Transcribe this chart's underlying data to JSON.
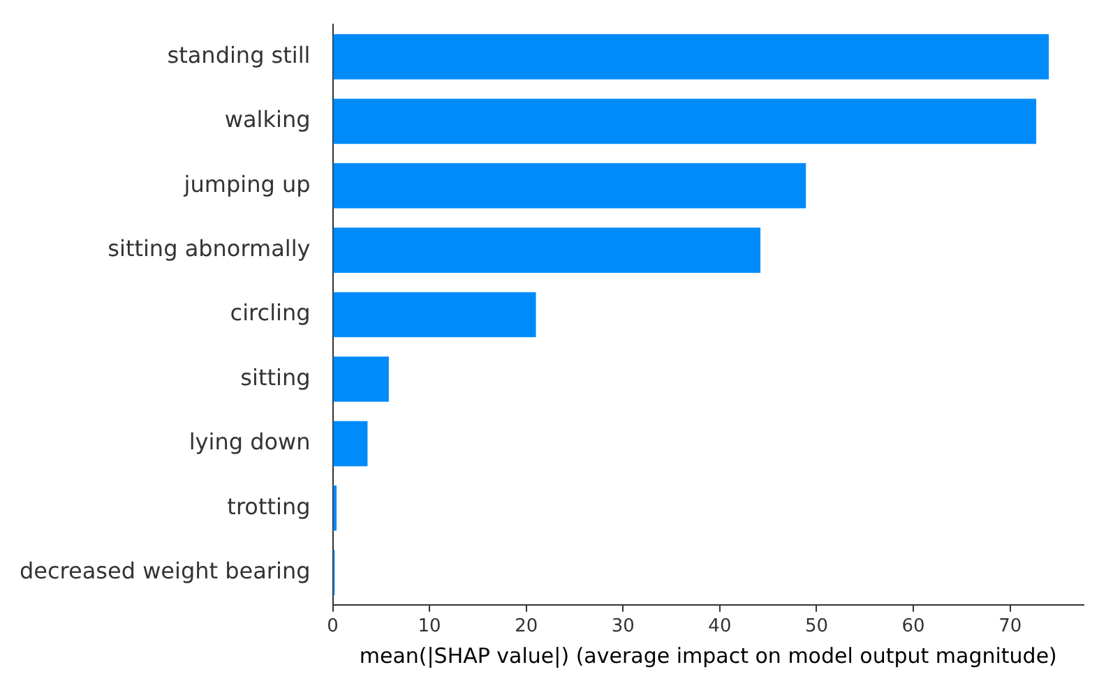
{
  "chart_data": {
    "type": "bar",
    "orientation": "horizontal",
    "xlabel": "mean(|SHAP value|) (average impact on model output magnitude)",
    "categories": [
      "standing still",
      "walking",
      "jumping up",
      "sitting abnormally",
      "circling",
      "sitting",
      "lying down",
      "trotting",
      "decreased weight bearing"
    ],
    "values": [
      74.0,
      72.7,
      48.9,
      44.2,
      21.0,
      5.8,
      3.6,
      0.4,
      0.2
    ],
    "color": "#008bfb",
    "xlim": [
      0,
      77.6
    ],
    "xticks": [
      0,
      10,
      20,
      30,
      40,
      50,
      60,
      70
    ]
  }
}
